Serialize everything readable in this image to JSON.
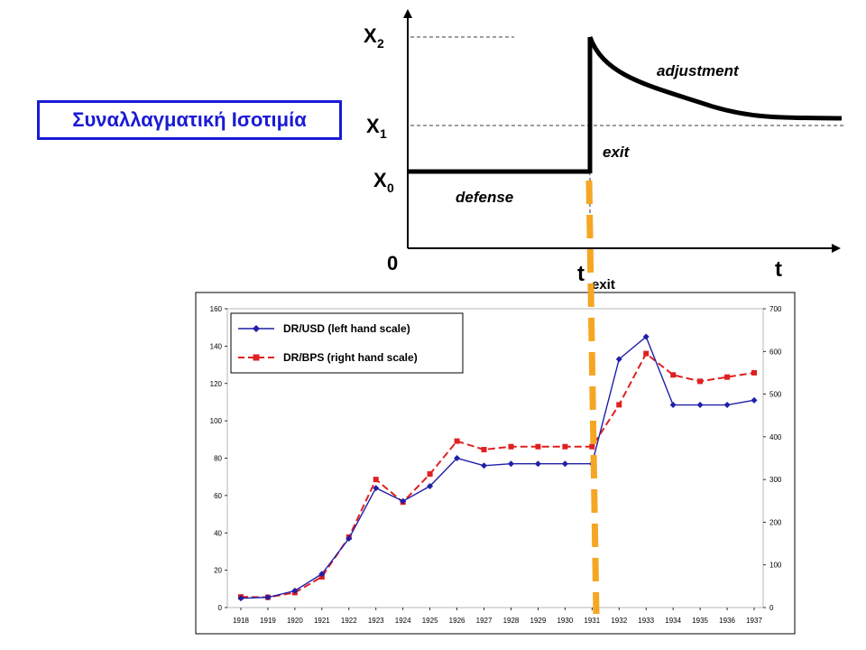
{
  "title": "Συναλλαγματική Ισοτιμία",
  "chart_data": [
    {
      "type": "line",
      "description_labels": {
        "x2_label": "X",
        "x2_sub": "2",
        "x1_label": "X",
        "x1_sub": "1",
        "x0_label": "X",
        "x0_sub": "0",
        "origin": "0",
        "t_axis": "t",
        "t_exit": "t",
        "t_exit_sub": "exit",
        "adjustment": "adjustment",
        "exit": "exit",
        "defense": "defense"
      }
    },
    {
      "type": "line",
      "categories": [
        "1918",
        "1919",
        "1920",
        "1921",
        "1922",
        "1923",
        "1924",
        "1925",
        "1926",
        "1927",
        "1928",
        "1929",
        "1930",
        "1931",
        "1932",
        "1933",
        "1934",
        "1935",
        "1936",
        "1937"
      ],
      "series": [
        {
          "name": "DR/USD (left hand scale)",
          "color": "#1f1fa8",
          "axis": "left",
          "values": [
            5,
            5.5,
            9,
            18,
            37,
            64,
            57,
            65,
            80,
            76,
            77,
            77,
            77,
            77,
            133,
            145,
            108.5,
            108.5,
            108.5,
            111
          ]
        },
        {
          "name": "DR/BPS (right hand  scale)",
          "color": "#e02020",
          "axis": "right",
          "values": [
            25,
            24,
            35,
            72,
            165,
            300,
            247,
            313,
            390,
            370,
            377,
            377,
            377,
            377,
            475,
            595,
            545,
            530,
            540,
            550
          ]
        }
      ],
      "left_axis": {
        "ylim": [
          0,
          160
        ],
        "ticks": [
          "0",
          "20",
          "40",
          "60",
          "80",
          "100",
          "120",
          "140",
          "160"
        ]
      },
      "right_axis": {
        "ylim": [
          0,
          700
        ],
        "ticks": [
          "0",
          "100",
          "200",
          "300",
          "400",
          "500",
          "600",
          "700"
        ]
      },
      "grid": false,
      "legend": "top-left"
    }
  ],
  "colors": {
    "title": "#1a1ad6",
    "exit_marker": "#f5a623"
  }
}
